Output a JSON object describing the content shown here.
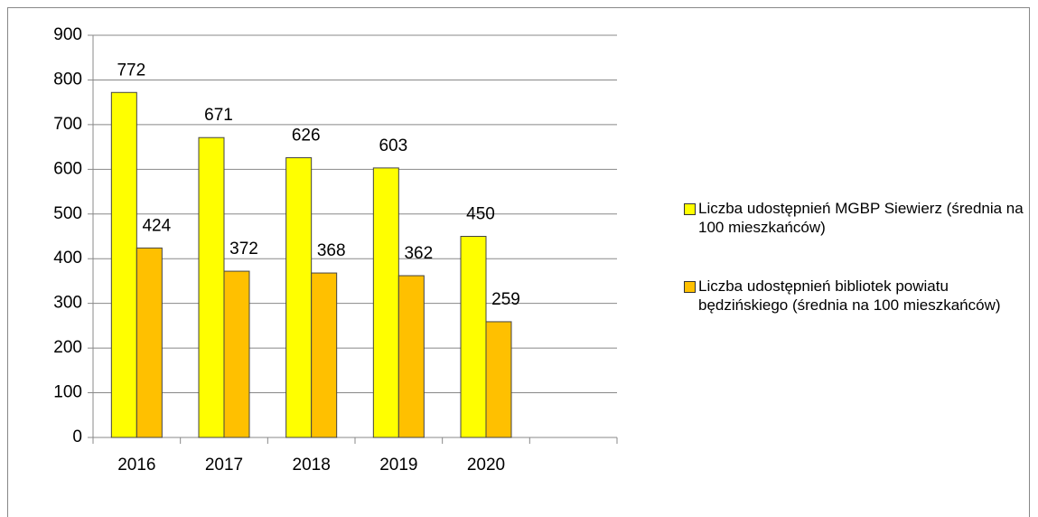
{
  "chart_data": {
    "type": "bar",
    "categories": [
      "2016",
      "2017",
      "2018",
      "2019",
      "2020",
      null
    ],
    "series": [
      {
        "name": "Liczba udostępnień MGBP Siewierz (średnia na 100 mieszkańców)",
        "color": "#ffff00",
        "values": [
          772,
          671,
          626,
          603,
          450,
          null
        ]
      },
      {
        "name": "Liczba udostępnień bibliotek powiatu będzińskiego (średnia na 100 mieszkańców)",
        "color": "#ffc000",
        "values": [
          424,
          372,
          368,
          362,
          259,
          null
        ]
      }
    ],
    "ylim": [
      0,
      900
    ],
    "yticks": [
      0,
      100,
      200,
      300,
      400,
      500,
      600,
      700,
      800,
      900
    ],
    "grid": true,
    "legend": "right"
  }
}
